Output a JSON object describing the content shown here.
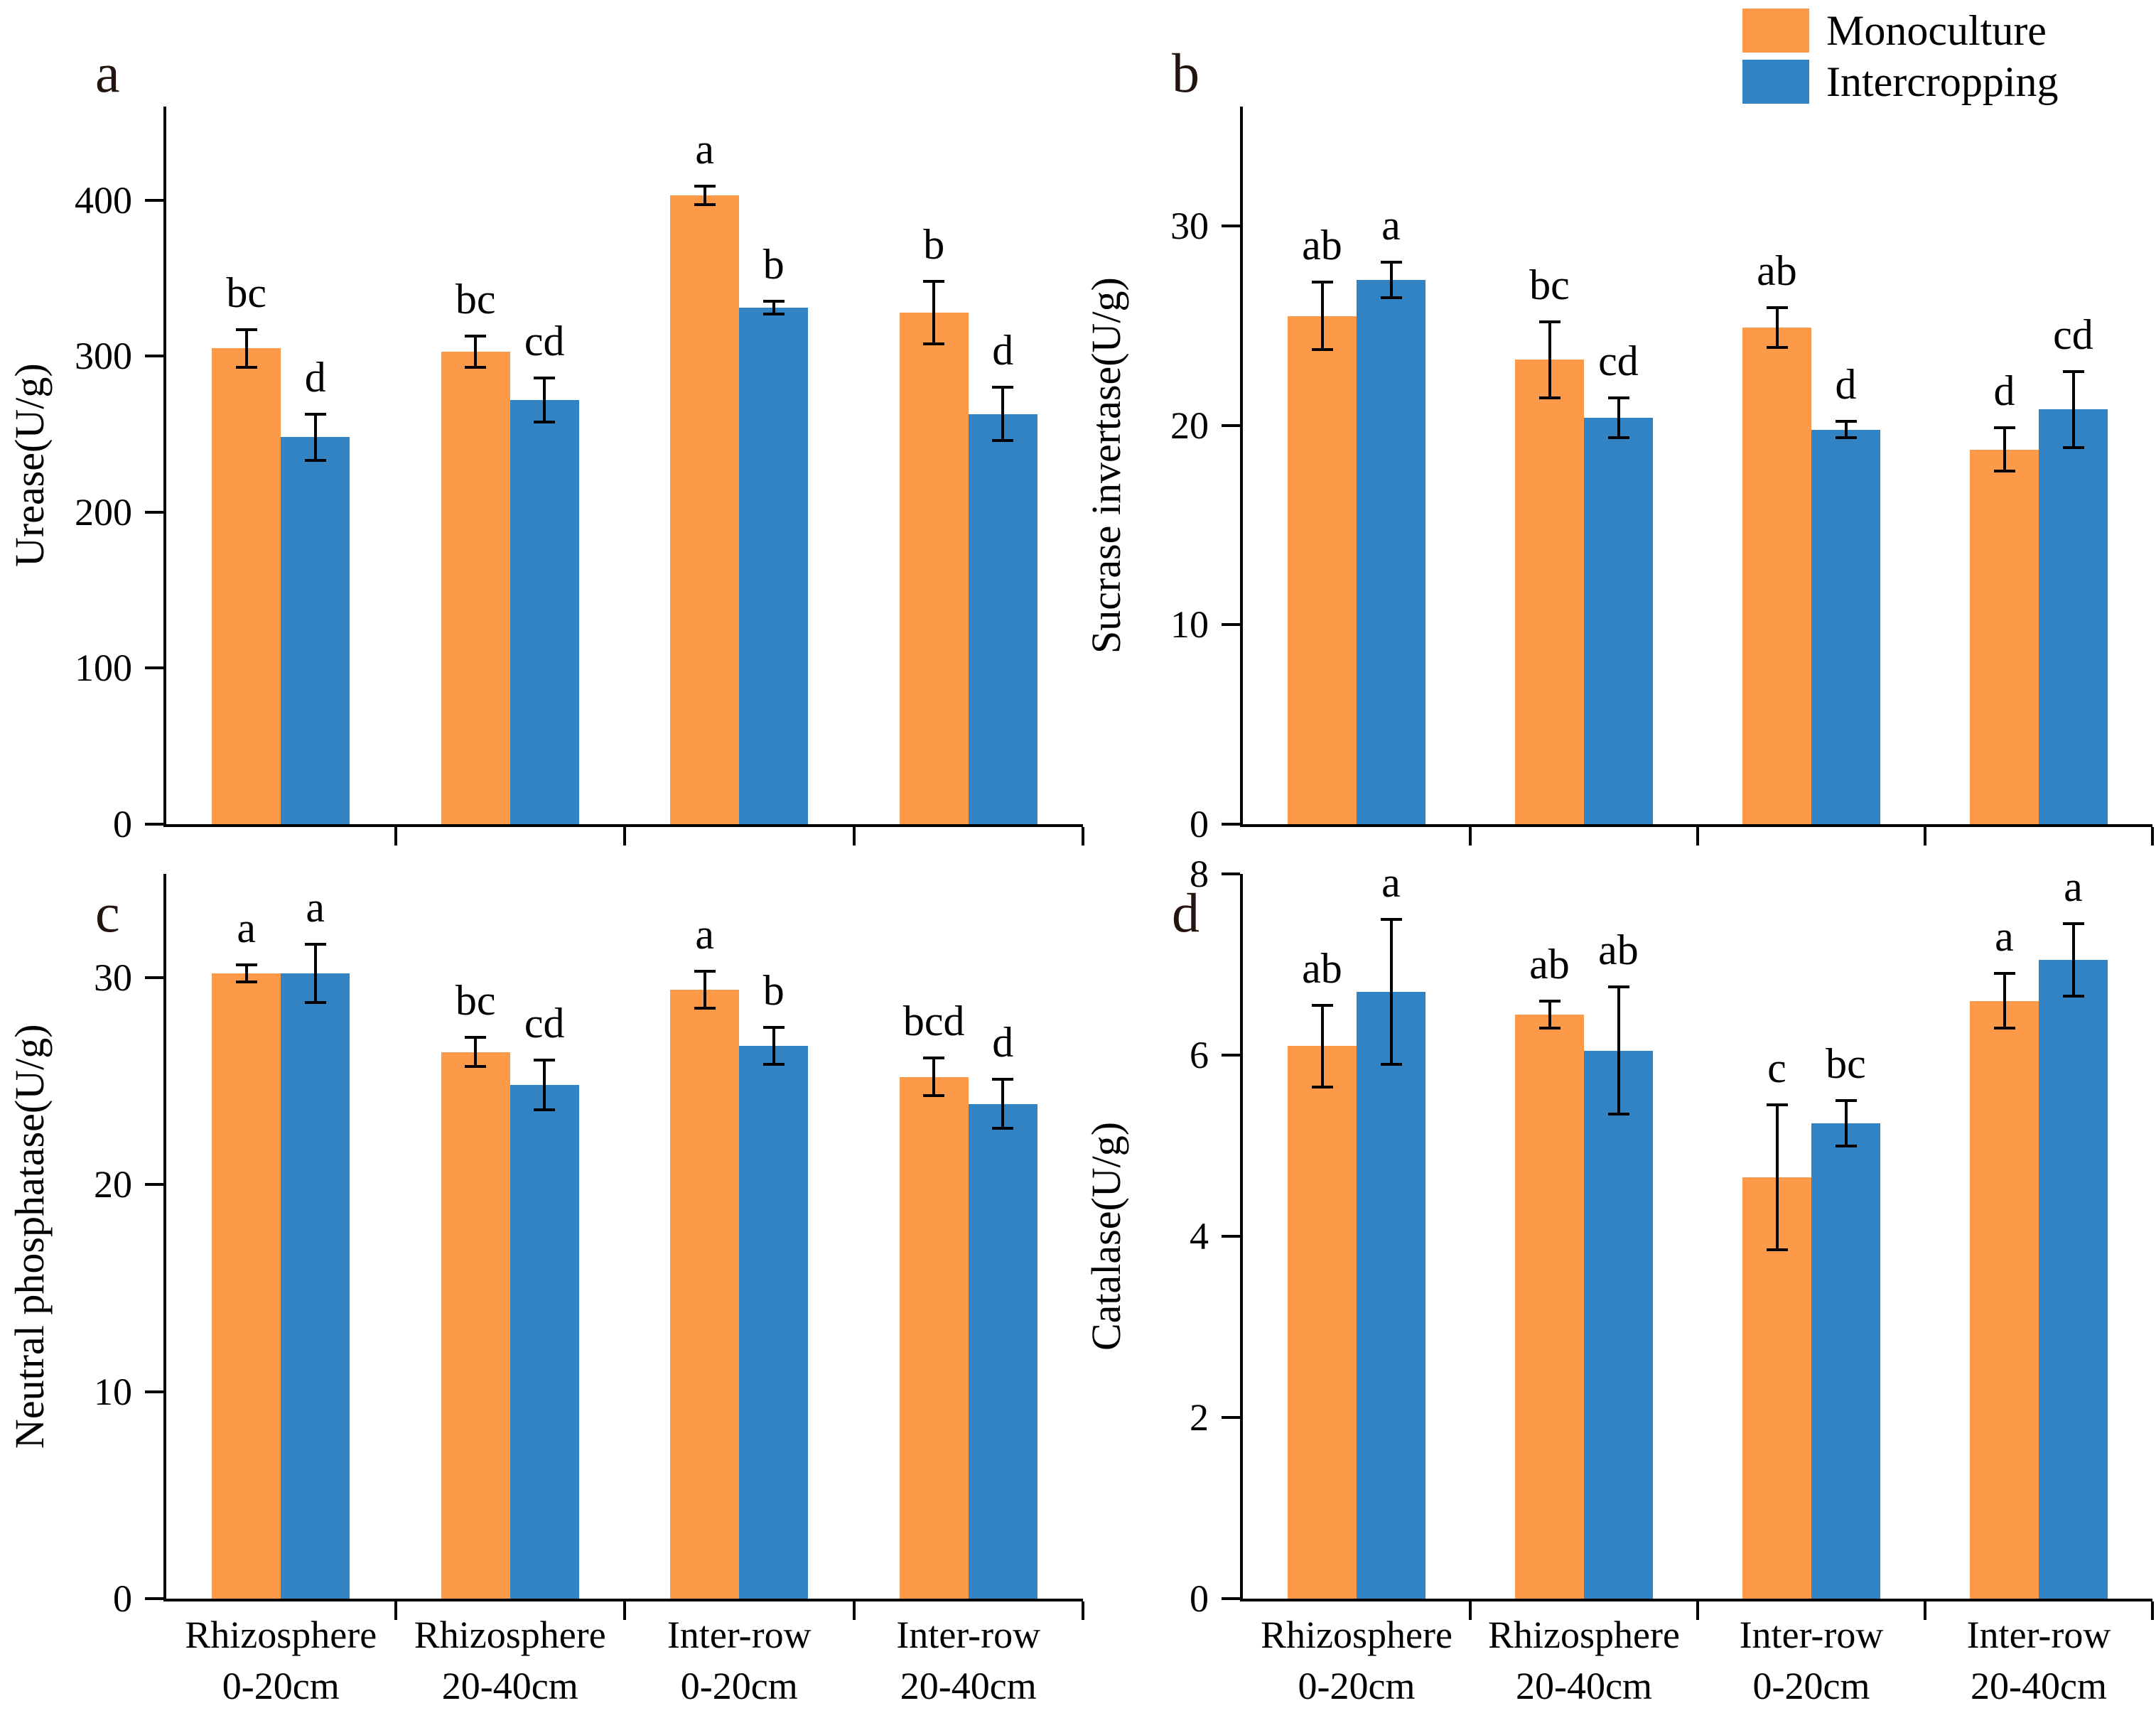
{
  "figure": {
    "background": "#ffffff"
  },
  "legend": {
    "position": "top-right",
    "items": [
      {
        "label": "Monoculture",
        "color": "#FD9A4A"
      },
      {
        "label": "Intercropping",
        "color": "#3183C4"
      }
    ]
  },
  "categories": [
    {
      "line1": "Rhizosphere",
      "line2": "0-20cm"
    },
    {
      "line1": "Rhizosphere",
      "line2": "20-40cm"
    },
    {
      "line1": "Inter-row",
      "line2": "0-20cm"
    },
    {
      "line1": "Inter-row",
      "line2": "20-40cm"
    }
  ],
  "chart_data": [
    {
      "type": "bar",
      "panel_label": "a",
      "ylabel": "Urease(U/g)",
      "xlabel": "",
      "yticks": [
        0,
        100,
        200,
        300,
        400
      ],
      "ylim": [
        0,
        460
      ],
      "grid": false,
      "show_x_labels": false,
      "categories": [
        "Rhizosphere 0-20cm",
        "Rhizosphere 20-40cm",
        "Inter-row 0-20cm",
        "Inter-row 20-40cm"
      ],
      "series": [
        {
          "name": "Monoculture",
          "values": [
            305,
            303,
            403,
            328
          ],
          "errors": [
            12,
            10,
            6,
            20
          ],
          "sig_letters": [
            "bc",
            "bc",
            "a",
            "b"
          ]
        },
        {
          "name": "Intercropping",
          "values": [
            248,
            272,
            331,
            263
          ],
          "errors": [
            15,
            14,
            4,
            17
          ],
          "sig_letters": [
            "d",
            "cd",
            "b",
            "d"
          ]
        }
      ]
    },
    {
      "type": "bar",
      "panel_label": "b",
      "ylabel": "Sucrase invertase(U/g)",
      "xlabel": "",
      "yticks": [
        0,
        10,
        20,
        30
      ],
      "ylim": [
        0,
        36
      ],
      "grid": false,
      "show_x_labels": false,
      "categories": [
        "Rhizosphere 0-20cm",
        "Rhizosphere 20-40cm",
        "Inter-row 0-20cm",
        "Inter-row 20-40cm"
      ],
      "series": [
        {
          "name": "Monoculture",
          "values": [
            25.5,
            23.3,
            24.9,
            18.8
          ],
          "errors": [
            1.7,
            1.9,
            1.0,
            1.1
          ],
          "sig_letters": [
            "ab",
            "bc",
            "ab",
            "d"
          ]
        },
        {
          "name": "Intercropping",
          "values": [
            27.3,
            20.4,
            19.8,
            20.8
          ],
          "errors": [
            0.9,
            1.0,
            0.4,
            1.9
          ],
          "sig_letters": [
            "a",
            "cd",
            "d",
            "cd"
          ]
        }
      ]
    },
    {
      "type": "bar",
      "panel_label": "c",
      "ylabel": "Neutral phosphatase(U/g)",
      "xlabel": "",
      "yticks": [
        0,
        10,
        20,
        30
      ],
      "ylim": [
        0,
        35
      ],
      "grid": false,
      "show_x_labels": true,
      "categories": [
        "Rhizosphere 0-20cm",
        "Rhizosphere 20-40cm",
        "Inter-row 0-20cm",
        "Inter-row 20-40cm"
      ],
      "series": [
        {
          "name": "Monoculture",
          "values": [
            30.2,
            26.4,
            29.4,
            25.2
          ],
          "errors": [
            0.4,
            0.7,
            0.9,
            0.9
          ],
          "sig_letters": [
            "a",
            "bc",
            "a",
            "bcd"
          ]
        },
        {
          "name": "Intercropping",
          "values": [
            30.2,
            24.8,
            26.7,
            23.9
          ],
          "errors": [
            1.4,
            1.2,
            0.9,
            1.2
          ],
          "sig_letters": [
            "a",
            "cd",
            "b",
            "d"
          ]
        }
      ]
    },
    {
      "type": "bar",
      "panel_label": "d",
      "ylabel": "Catalase(U/g)",
      "xlabel": "",
      "yticks": [
        0,
        2,
        4,
        6,
        8
      ],
      "ylim": [
        0,
        8
      ],
      "grid": false,
      "show_x_labels": true,
      "categories": [
        "Rhizosphere 0-20cm",
        "Rhizosphere 20-40cm",
        "Inter-row 0-20cm",
        "Inter-row 20-40cm"
      ],
      "series": [
        {
          "name": "Monoculture",
          "values": [
            6.1,
            6.45,
            4.65,
            6.6
          ],
          "errors": [
            0.45,
            0.15,
            0.8,
            0.3
          ],
          "sig_letters": [
            "ab",
            "ab",
            "c",
            "a"
          ]
        },
        {
          "name": "Intercropping",
          "values": [
            6.7,
            6.05,
            5.25,
            7.05
          ],
          "errors": [
            0.8,
            0.7,
            0.25,
            0.4
          ],
          "sig_letters": [
            "a",
            "ab",
            "bc",
            "a"
          ]
        }
      ]
    }
  ]
}
